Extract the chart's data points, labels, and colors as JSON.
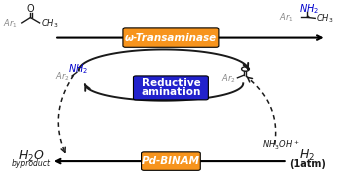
{
  "orange_color": "#f7941d",
  "blue_box_color": "#2222cc",
  "arrow_color": "#1a1a1a",
  "text_color": "#1a1a1a",
  "blue_text_color": "#0000cc",
  "gray_text_color": "#888888",
  "transaminase_label": "ω-Transaminase",
  "pd_binam_label": "Pd-BINAM",
  "reductive_line1": "Reductive",
  "reductive_line2": "amination",
  "h2o_label": "H₂O",
  "byproduct_label": "byproduct",
  "h2_label": "H₂",
  "h2_atm_label": "(1atm)",
  "nh3oh_label": "NH₃OH⁺"
}
